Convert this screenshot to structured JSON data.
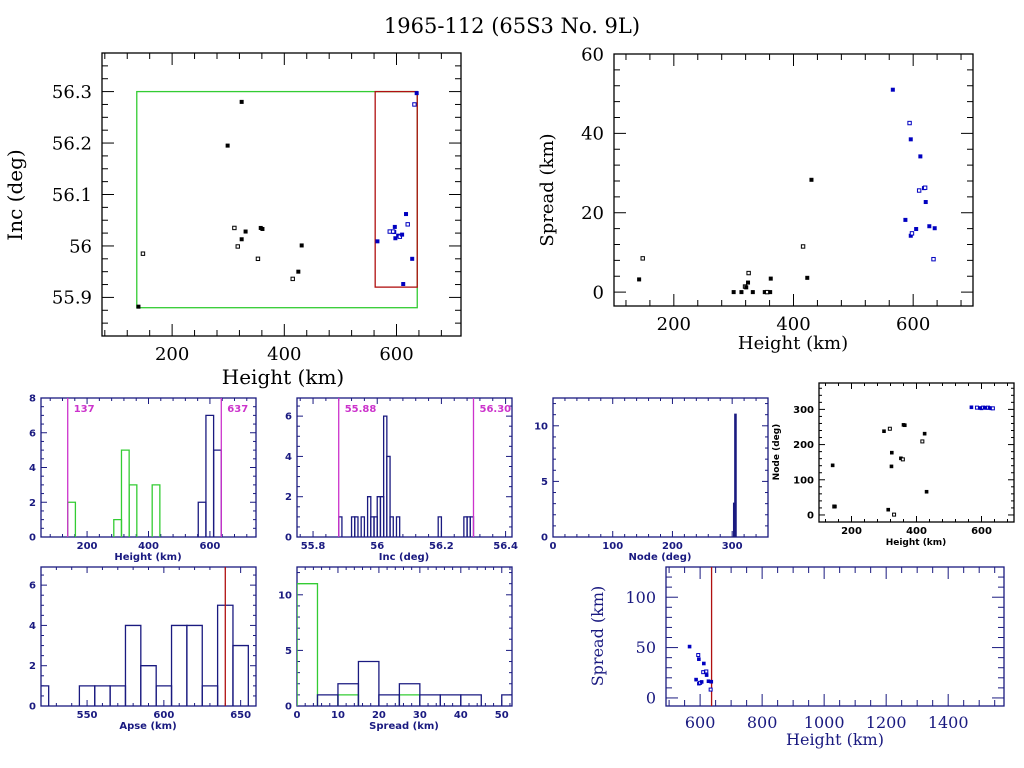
{
  "title": "1965-112 (65S3 No. 9L)",
  "colors": {
    "black": "#000000",
    "navy": "#1a1a80",
    "blue": "#0000c0",
    "green": "#33cc33",
    "red": "#b01010",
    "magenta": "#cc33cc"
  },
  "chart_data": [
    {
      "id": "inc-vs-height",
      "type": "scatter",
      "title": "",
      "xlabel": "Height (km)",
      "ylabel": "Inc (deg)",
      "xlim": [
        75,
        715
      ],
      "ylim": [
        55.825,
        56.375
      ],
      "xticks": [
        200,
        400,
        600
      ],
      "yticks": [
        55.9,
        56,
        56.1,
        56.2,
        56.3
      ],
      "ytick_labels": [
        "55.9",
        "56",
        "56.1",
        "56.2",
        "56.3"
      ],
      "green_box": {
        "x": [
          137,
          637
        ],
        "y": [
          55.88,
          56.3
        ]
      },
      "red_box": {
        "x": [
          562,
          637
        ],
        "y": [
          55.92,
          56.3
        ]
      },
      "series": [
        {
          "name": "black",
          "color": "black",
          "points": [
            [
              140,
              55.882
            ],
            [
              148,
              55.985
            ],
            [
              299,
              56.195
            ],
            [
              324,
              56.28
            ],
            [
              311,
              56.035
            ],
            [
              331,
              56.028
            ],
            [
              324,
              56.013
            ],
            [
              317,
              55.999
            ],
            [
              358,
              56.035
            ],
            [
              361,
              56.033
            ],
            [
              353,
              55.975
            ],
            [
              431,
              56.001
            ],
            [
              425,
              55.95
            ],
            [
              415,
              55.936
            ]
          ]
        },
        {
          "name": "blue",
          "color": "blue",
          "points": [
            [
              566,
              56.009
            ],
            [
              588,
              56.028
            ],
            [
              597,
              56.037
            ],
            [
              596,
              56.027
            ],
            [
              594,
              56.028
            ],
            [
              598,
              56.015
            ],
            [
              603,
              56.02
            ],
            [
              606,
              56.018
            ],
            [
              610,
              56.022
            ],
            [
              617,
              56.062
            ],
            [
              620,
              56.042
            ],
            [
              628,
              55.975
            ],
            [
              612,
              55.926
            ],
            [
              632,
              56.275
            ],
            [
              636,
              56.297
            ]
          ]
        }
      ]
    },
    {
      "id": "spread-vs-height",
      "type": "scatter",
      "xlabel": "Height (km)",
      "ylabel": "Spread (km)",
      "xlim": [
        100,
        700
      ],
      "ylim": [
        -3.5,
        60
      ],
      "xticks": [
        200,
        400,
        600
      ],
      "yticks": [
        0,
        20,
        40,
        60
      ],
      "series": [
        {
          "name": "black",
          "color": "black",
          "points": [
            [
              142,
              3.2
            ],
            [
              148,
              8.5
            ],
            [
              300,
              0
            ],
            [
              313,
              0
            ],
            [
              319,
              1.4
            ],
            [
              321,
              1.2
            ],
            [
              324,
              2.4
            ],
            [
              325,
              4.8
            ],
            [
              332,
              0
            ],
            [
              352,
              0
            ],
            [
              356,
              0
            ],
            [
              361,
              0
            ],
            [
              362,
              3.4
            ],
            [
              416,
              11.5
            ],
            [
              423,
              3.6
            ],
            [
              430,
              28.3
            ]
          ]
        },
        {
          "name": "blue",
          "color": "blue",
          "points": [
            [
              566,
              51
            ],
            [
              594,
              42.6
            ],
            [
              596,
              38.5
            ],
            [
              596,
              14.2
            ],
            [
              598,
              14.8
            ],
            [
              587,
              18.2
            ],
            [
              605,
              15.9
            ],
            [
              610,
              25.6
            ],
            [
              612,
              34.2
            ],
            [
              618,
              26.2
            ],
            [
              620,
              26.3
            ],
            [
              621,
              22.7
            ],
            [
              627,
              16.6
            ],
            [
              634,
              8.3
            ],
            [
              636,
              16.1
            ]
          ]
        }
      ]
    },
    {
      "id": "height-hist",
      "type": "bar",
      "xlabel": "Height (km)",
      "ylabel": "",
      "xlim": [
        50,
        750
      ],
      "ylim": [
        0,
        8
      ],
      "xticks": [
        200,
        400,
        600
      ],
      "yticks": [
        0,
        2,
        4,
        6,
        8
      ],
      "bin_width": 25,
      "series": [
        {
          "name": "green",
          "color": "green",
          "bins": [
            [
              137,
              2
            ],
            [
              287,
              1
            ],
            [
              312,
              5
            ],
            [
              337,
              3
            ],
            [
              412,
              3
            ]
          ]
        },
        {
          "name": "navy",
          "color": "navy",
          "bins": [
            [
              562,
              2
            ],
            [
              587,
              7
            ],
            [
              612,
              5
            ]
          ]
        }
      ],
      "vlines": [
        {
          "x": 137,
          "label": "137",
          "label_side": "right"
        },
        {
          "x": 637,
          "label": "637",
          "label_side": "right"
        }
      ]
    },
    {
      "id": "inc-hist",
      "type": "bar",
      "xlabel": "Inc (deg)",
      "ylabel": "",
      "xlim": [
        55.75,
        56.42
      ],
      "ylim": [
        0,
        6.9
      ],
      "xticks": [
        55.8,
        56,
        56.2,
        56.4
      ],
      "xtick_labels": [
        "55.8",
        "56",
        "56.2",
        "56.4"
      ],
      "yticks": [
        0,
        2,
        4,
        6
      ],
      "bin_width": 0.01,
      "series": [
        {
          "name": "navy",
          "color": "navy",
          "bins": [
            [
              55.88,
              1
            ],
            [
              55.92,
              1
            ],
            [
              55.93,
              1
            ],
            [
              55.95,
              1
            ],
            [
              55.97,
              2
            ],
            [
              55.98,
              1
            ],
            [
              55.99,
              1
            ],
            [
              56.0,
              2
            ],
            [
              56.01,
              2
            ],
            [
              56.02,
              6
            ],
            [
              56.03,
              4
            ],
            [
              56.04,
              1
            ],
            [
              56.06,
              1
            ],
            [
              56.19,
              1
            ],
            [
              56.27,
              1
            ],
            [
              56.28,
              1
            ],
            [
              56.29,
              1
            ]
          ]
        }
      ],
      "vlines": [
        {
          "x": 55.88,
          "label": "55.88"
        },
        {
          "x": 56.3,
          "label": "56.30"
        }
      ]
    },
    {
      "id": "node-hist",
      "type": "bar",
      "xlabel": "Node (deg)",
      "ylabel": "",
      "xlim": [
        0,
        360
      ],
      "ylim": [
        0,
        12.5
      ],
      "xticks": [
        0,
        100,
        200,
        300
      ],
      "yticks": [
        0,
        5,
        10
      ],
      "bin_width": 1,
      "series": [
        {
          "name": "navy",
          "color": "navy",
          "bins": [
            [
              303,
              3
            ],
            [
              305,
              11
            ]
          ]
        }
      ]
    },
    {
      "id": "node-vs-height",
      "type": "scatter",
      "xlabel": "Height (km)",
      "ylabel": "Node (deg)",
      "xlim": [
        100,
        700
      ],
      "ylim": [
        -20,
        375
      ],
      "xticks": [
        200,
        400,
        600
      ],
      "yticks": [
        0,
        100,
        200,
        300
      ],
      "series": [
        {
          "name": "black",
          "color": "black",
          "points": [
            [
              142,
              141
            ],
            [
              147,
              24
            ],
            [
              149,
              24
            ],
            [
              300,
              238
            ],
            [
              318,
              245
            ],
            [
              324,
              177
            ],
            [
              323,
              138
            ],
            [
              331,
              1
            ],
            [
              313,
              15
            ],
            [
              352,
              161
            ],
            [
              358,
              158
            ],
            [
              360,
              256
            ],
            [
              364,
              255
            ],
            [
              418,
              209
            ],
            [
              425,
              231
            ],
            [
              431,
              66
            ]
          ]
        },
        {
          "name": "blue",
          "color": "blue",
          "points": [
            [
              569,
              306
            ],
            [
              586,
              305
            ],
            [
              595,
              304
            ],
            [
              600,
              303
            ],
            [
              605,
              305
            ],
            [
              610,
              305
            ],
            [
              615,
              304
            ],
            [
              620,
              305
            ],
            [
              625,
              304
            ],
            [
              630,
              303
            ],
            [
              635,
              303
            ]
          ]
        }
      ]
    },
    {
      "id": "apse-hist",
      "type": "bar",
      "xlabel": "Apse (km)",
      "ylabel": "",
      "xlim": [
        520,
        660
      ],
      "ylim": [
        0,
        6.9
      ],
      "xticks": [
        550,
        600,
        650
      ],
      "yticks": [
        0,
        2,
        4,
        6
      ],
      "bin_width": 10,
      "series": [
        {
          "name": "navy",
          "color": "navy",
          "bins": [
            [
              515,
              1
            ],
            [
              545,
              1
            ],
            [
              555,
              1
            ],
            [
              565,
              1
            ],
            [
              575,
              4
            ],
            [
              585,
              2
            ],
            [
              595,
              1
            ],
            [
              605,
              4
            ],
            [
              615,
              4
            ],
            [
              625,
              1
            ],
            [
              635,
              5
            ],
            [
              645,
              3
            ]
          ]
        }
      ],
      "vlines": [
        {
          "x": 640,
          "label": ""
        }
      ]
    },
    {
      "id": "spread-hist",
      "type": "bar",
      "xlabel": "Spread (km)",
      "ylabel": "",
      "xlim": [
        0,
        52.5
      ],
      "ylim": [
        0,
        12.5
      ],
      "xticks": [
        0,
        10,
        20,
        30,
        40,
        50
      ],
      "yticks": [
        0,
        5,
        10
      ],
      "bin_width": 5,
      "series": [
        {
          "name": "green",
          "color": "green",
          "bins": [
            [
              0,
              11
            ],
            [
              10,
              1
            ],
            [
              25,
              1
            ]
          ]
        },
        {
          "name": "navy",
          "color": "navy",
          "bins": [
            [
              5,
              1
            ],
            [
              10,
              2
            ],
            [
              15,
              4
            ],
            [
              20,
              1
            ],
            [
              25,
              2
            ],
            [
              30,
              1
            ],
            [
              35,
              1
            ],
            [
              40,
              1
            ],
            [
              50,
              1
            ]
          ]
        }
      ]
    },
    {
      "id": "spread-vs-height-wide",
      "type": "scatter",
      "xlabel": "Height (km)",
      "ylabel": "Spread (km)",
      "xlim": [
        490,
        1580
      ],
      "ylim": [
        -8,
        130
      ],
      "xticks": [
        600,
        800,
        1000,
        1200,
        1400
      ],
      "yticks": [
        0,
        50,
        100
      ],
      "vlines": [
        {
          "x": 637,
          "label": ""
        }
      ],
      "series": [
        {
          "name": "blue",
          "color": "blue",
          "points": [
            [
              566,
              51
            ],
            [
              594,
              42.6
            ],
            [
              596,
              38.5
            ],
            [
              596,
              14.2
            ],
            [
              600,
              15
            ],
            [
              587,
              18.2
            ],
            [
              605,
              15.9
            ],
            [
              610,
              25.6
            ],
            [
              612,
              34.2
            ],
            [
              618,
              26.2
            ],
            [
              620,
              26.3
            ],
            [
              621,
              22.7
            ],
            [
              627,
              16.6
            ],
            [
              634,
              8.3
            ],
            [
              636,
              16.1
            ]
          ]
        }
      ]
    }
  ]
}
